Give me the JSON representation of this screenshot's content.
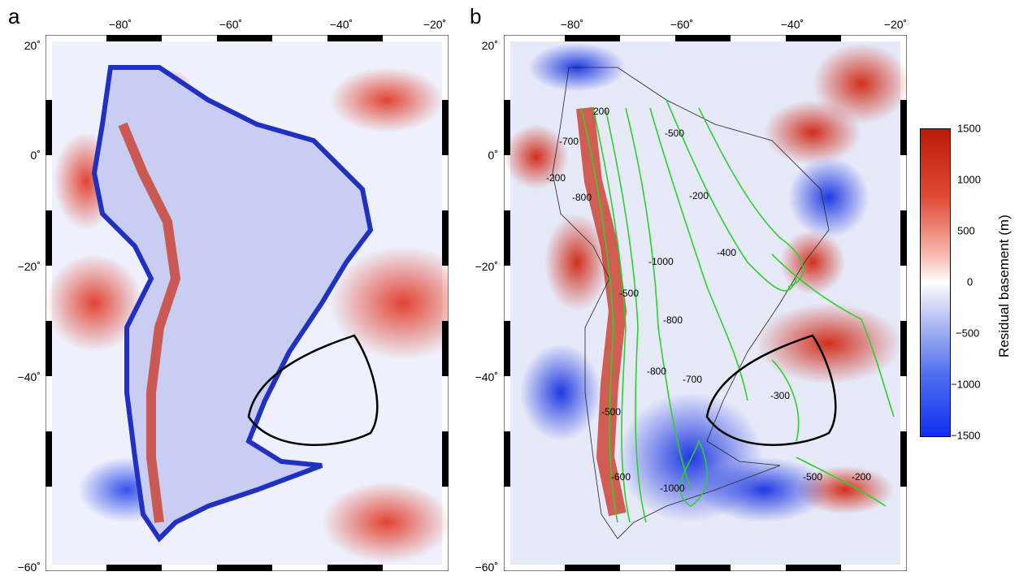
{
  "panel_a": {
    "letter": "a",
    "lon_ticks": [
      "−80˚",
      "−60˚",
      "−40˚",
      "−20˚"
    ],
    "lat_ticks": [
      "20˚",
      "0˚",
      "−20˚",
      "−40˚",
      "−60˚"
    ]
  },
  "panel_b": {
    "letter": "b",
    "lon_ticks": [
      "−80˚",
      "−60˚",
      "−40˚",
      "−20˚"
    ],
    "lat_ticks": [
      "20˚",
      "0˚",
      "−20˚",
      "−40˚",
      "−60˚"
    ],
    "contour_labels": [
      "-700",
      "-200",
      "200",
      "-500",
      "-800",
      "-200",
      "-1000",
      "-400",
      "-500",
      "-800",
      "-800",
      "-700",
      "-300",
      "-500",
      "-600",
      "-1000",
      "-500",
      "-200"
    ]
  },
  "colorbar": {
    "title": "Residual basement (m)",
    "ticks": [
      "1500",
      "1000",
      "500",
      "0",
      "−500",
      "−1000",
      "−1500"
    ],
    "colors": {
      "high": "#c8200c",
      "mid": "#ffffff",
      "low": "#1a3cf0"
    }
  }
}
